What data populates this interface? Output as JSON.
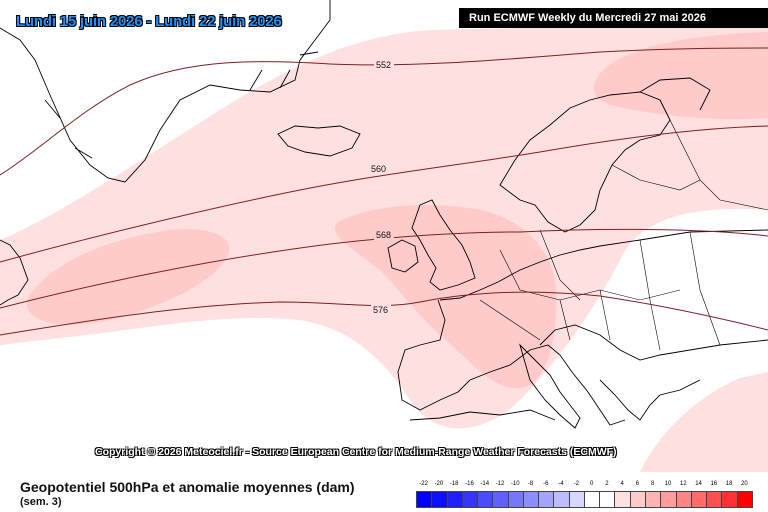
{
  "header": {
    "period": "Lundi 15 juin 2026 - Lundi 22 juin 2026",
    "run": "Run ECMWF Weekly du Mercredi 27 mai 2026"
  },
  "copyright": "Copyright © 2026 Meteociel.fr - Source European Centre for Medium-Range Weather Forecasts (ECMWF)",
  "legend": {
    "title": "Geopotentiel 500hPa et anomalie moyennes (dam)",
    "subtitle": "(sem. 3)",
    "scale": [
      {
        "label": "-22",
        "color": "#0000ff"
      },
      {
        "label": "-20",
        "color": "#0f0fff"
      },
      {
        "label": "-18",
        "color": "#2020ff"
      },
      {
        "label": "-16",
        "color": "#3535ff"
      },
      {
        "label": "-14",
        "color": "#4a4aff"
      },
      {
        "label": "-12",
        "color": "#6060ff"
      },
      {
        "label": "-10",
        "color": "#7676ff"
      },
      {
        "label": "-8",
        "color": "#8d8dff"
      },
      {
        "label": "-6",
        "color": "#a4a4ff"
      },
      {
        "label": "-4",
        "color": "#bcbcff"
      },
      {
        "label": "-2",
        "color": "#d6d6ff"
      },
      {
        "label": "0",
        "color": "#ffffff"
      },
      {
        "label": "2",
        "color": "#ffffff"
      },
      {
        "label": "4",
        "color": "#ffe0e0"
      },
      {
        "label": "6",
        "color": "#ffcaca"
      },
      {
        "label": "8",
        "color": "#ffb4b4"
      },
      {
        "label": "10",
        "color": "#ff9c9c"
      },
      {
        "label": "12",
        "color": "#ff8484"
      },
      {
        "label": "14",
        "color": "#ff6a6a"
      },
      {
        "label": "16",
        "color": "#ff5050"
      },
      {
        "label": "18",
        "color": "#ff3030"
      },
      {
        "label": "20",
        "color": "#ff0000"
      }
    ]
  },
  "contours": [
    {
      "label": "552"
    },
    {
      "label": "560"
    },
    {
      "label": "568"
    },
    {
      "label": "576"
    }
  ],
  "colors": {
    "anomaly_light": "#ffe0e0",
    "anomaly_medium": "#ffcaca",
    "coastline": "#000000",
    "contour": "#7a2020"
  }
}
